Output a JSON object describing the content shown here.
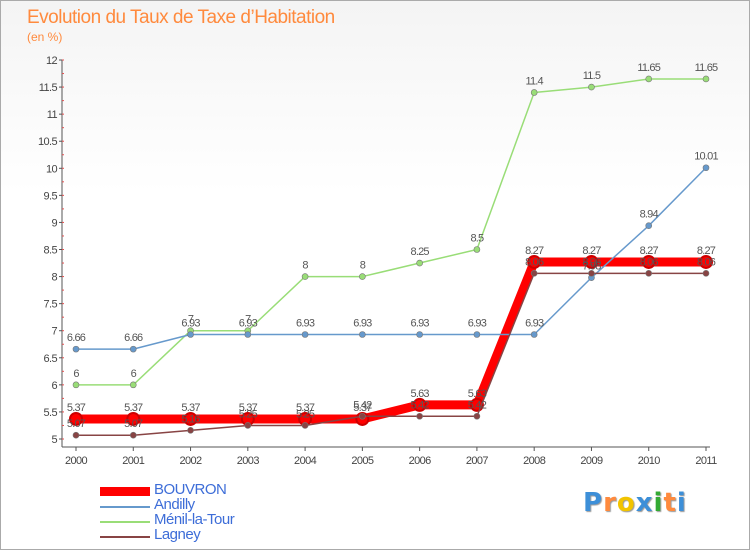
{
  "title": "Evolution du Taux de Taxe d’Habitation",
  "subtitle": "(en %)",
  "logo": {
    "text": "Proxiti",
    "letters": [
      "P",
      "r",
      "o",
      "x",
      "i",
      "t",
      "i"
    ],
    "colors": [
      "#3d8fd8",
      "#ff8a3d",
      "#f2c400",
      "#3d8fd8",
      "#33aa33",
      "#ff8a3d",
      "#3d8fd8"
    ]
  },
  "chart_data": {
    "type": "line",
    "title": "Evolution du Taux de Taxe d’Habitation",
    "subtitle": "(en %)",
    "x": [
      "2000",
      "2001",
      "2002",
      "2003",
      "2004",
      "2005",
      "2006",
      "2007",
      "2008",
      "2009",
      "2010",
      "2011"
    ],
    "ylim": [
      5,
      12
    ],
    "yticks": [
      "5",
      "5.5",
      "6",
      "6.5",
      "7",
      "7.5",
      "8",
      "8.5",
      "9",
      "9.5",
      "10",
      "10.5",
      "11",
      "11.5",
      "12"
    ],
    "grid": false,
    "legend_position": "bottom-left",
    "series": [
      {
        "name": "BOUVRON",
        "color": "#ff0000",
        "values": [
          5.37,
          5.37,
          5.37,
          5.37,
          5.37,
          5.37,
          5.63,
          5.63,
          8.27,
          8.27,
          8.27,
          8.27
        ],
        "labels": [
          "5.37",
          "5.37",
          "5.37",
          "5.37",
          "5.37",
          "5.37",
          "5.63",
          "5.63",
          "8.27",
          "8.27",
          "8.27",
          "8.27"
        ]
      },
      {
        "name": "Andilly",
        "color": "#6699cc",
        "values": [
          6.66,
          6.66,
          6.93,
          6.93,
          6.93,
          6.93,
          6.93,
          6.93,
          6.93,
          7.98,
          8.94,
          10.01
        ],
        "labels": [
          "6.66",
          "6.66",
          "6.93",
          "6.93",
          "6.93",
          "6.93",
          "6.93",
          "6.93",
          "6.93",
          "7.98",
          "8.94",
          "10.01"
        ]
      },
      {
        "name": "Ménil-la-Tour",
        "color": "#99dd77",
        "values": [
          6,
          6,
          7,
          7,
          8,
          8,
          8.25,
          8.5,
          11.4,
          11.5,
          11.65,
          11.65
        ],
        "labels": [
          "6",
          "6",
          "7",
          "7",
          "8",
          "8",
          "8.25",
          "8.5",
          "11.4",
          "11.5",
          "11.65",
          "11.65"
        ]
      },
      {
        "name": "Lagney",
        "color": "#884444",
        "values": [
          5.07,
          5.07,
          5.16,
          5.25,
          5.25,
          5.42,
          5.42,
          5.42,
          8.06,
          8.06,
          8.06,
          8.06
        ],
        "labels": [
          "5.07",
          "5.07",
          "5.16",
          "5.25",
          "5.25",
          "5.42",
          "5.42",
          "5.42",
          "8.06",
          "8.06",
          "8.06",
          "8.06"
        ]
      }
    ]
  }
}
